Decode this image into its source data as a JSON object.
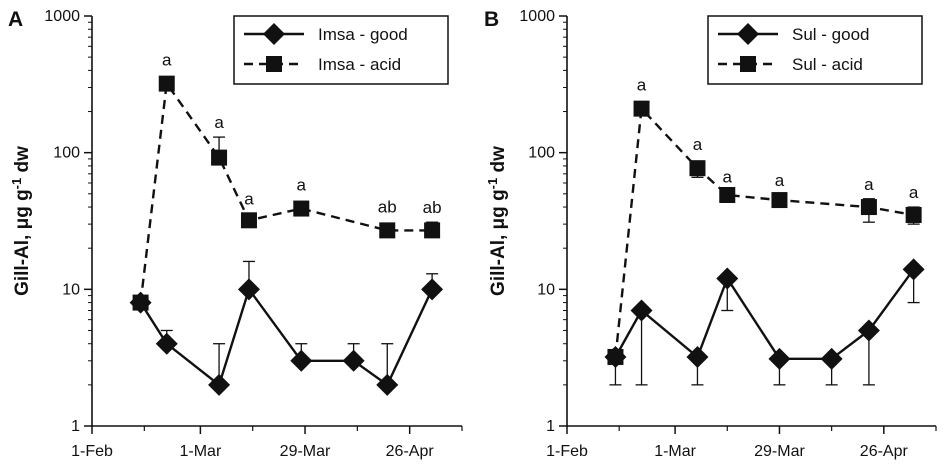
{
  "chart_data": [
    {
      "type": "line",
      "panel_label": "A",
      "ylabel_text": "Gill-Al, μg g",
      "ylabel_sup": "-1",
      "ylabel_tail": " dw",
      "yscale": "log",
      "ylim": [
        1,
        1000
      ],
      "yticks": [
        "1",
        "10",
        "100",
        "1000"
      ],
      "xticks": [
        "1-Feb",
        "1-Mar",
        "29-Mar",
        "26-Apr"
      ],
      "legend_position": "top-right",
      "series": [
        {
          "name": "Imsa - good",
          "marker": "diamond",
          "line": "solid",
          "points": [
            {
              "x": "2024-02-14",
              "y": 8
            },
            {
              "x": "2024-02-21",
              "y": 4,
              "err_up": 5
            },
            {
              "x": "2024-03-06",
              "y": 2,
              "err_up": 4
            },
            {
              "x": "2024-03-14",
              "y": 10,
              "err_up": 16
            },
            {
              "x": "2024-03-28",
              "y": 3,
              "err_up": 4
            },
            {
              "x": "2024-04-11",
              "y": 3,
              "err_up": 4
            },
            {
              "x": "2024-04-20",
              "y": 2,
              "err_up": 4
            },
            {
              "x": "2024-05-02",
              "y": 10,
              "err_up": 13
            }
          ]
        },
        {
          "name": "Imsa - acid",
          "marker": "square",
          "line": "dashed",
          "points": [
            {
              "x": "2024-02-14",
              "y": 8
            },
            {
              "x": "2024-02-21",
              "y": 320,
              "label": "a"
            },
            {
              "x": "2024-03-06",
              "y": 92,
              "err_up": 130,
              "label": "a"
            },
            {
              "x": "2024-03-14",
              "y": 32,
              "err_up": 36,
              "label": "a"
            },
            {
              "x": "2024-03-28",
              "y": 39,
              "label": "a"
            },
            {
              "x": "2024-04-20",
              "y": 27,
              "label": "ab"
            },
            {
              "x": "2024-05-02",
              "y": 27,
              "err_up": 31,
              "label": "ab"
            }
          ]
        }
      ]
    },
    {
      "type": "line",
      "panel_label": "B",
      "ylabel_text": "Gill-Al, μg g",
      "ylabel_sup": "-1",
      "ylabel_tail": " dw",
      "yscale": "log",
      "ylim": [
        1,
        1000
      ],
      "yticks": [
        "1",
        "10",
        "100",
        "1000"
      ],
      "xticks": [
        "1-Feb",
        "1-Mar",
        "29-Mar",
        "26-Apr"
      ],
      "legend_position": "top-right",
      "series": [
        {
          "name": "Sul - good",
          "marker": "diamond",
          "line": "solid",
          "points": [
            {
              "x": "2024-02-14",
              "y": 3.2,
              "err_up": 3.2,
              "err_down": 2
            },
            {
              "x": "2024-02-21",
              "y": 7,
              "err_up": 7,
              "err_down": 2
            },
            {
              "x": "2024-03-07",
              "y": 3.2,
              "err_up": 3.2,
              "err_down": 2
            },
            {
              "x": "2024-03-15",
              "y": 12,
              "err_up": 12,
              "err_down": 7
            },
            {
              "x": "2024-03-29",
              "y": 3.1,
              "err_up": 3.1,
              "err_down": 2
            },
            {
              "x": "2024-04-12",
              "y": 3.1,
              "err_up": 3.1,
              "err_down": 2
            },
            {
              "x": "2024-04-22",
              "y": 5,
              "err_up": 5,
              "err_down": 2
            },
            {
              "x": "2024-05-04",
              "y": 14,
              "err_up": 14,
              "err_down": 8
            }
          ]
        },
        {
          "name": "Sul - acid",
          "marker": "square",
          "line": "dashed",
          "points": [
            {
              "x": "2024-02-14",
              "y": 3.2
            },
            {
              "x": "2024-02-21",
              "y": 210,
              "err_down": 190,
              "label": "a"
            },
            {
              "x": "2024-03-07",
              "y": 77,
              "err_down": 66,
              "label": "a"
            },
            {
              "x": "2024-03-15",
              "y": 49,
              "err_up": 52,
              "err_down": 45,
              "label": "a"
            },
            {
              "x": "2024-03-29",
              "y": 45,
              "err_up": 49,
              "err_down": 40,
              "label": "a"
            },
            {
              "x": "2024-04-22",
              "y": 40,
              "err_up": 46,
              "err_down": 31,
              "label": "a"
            },
            {
              "x": "2024-05-04",
              "y": 35,
              "err_up": 40,
              "err_down": 30,
              "label": "a"
            }
          ]
        }
      ]
    }
  ]
}
